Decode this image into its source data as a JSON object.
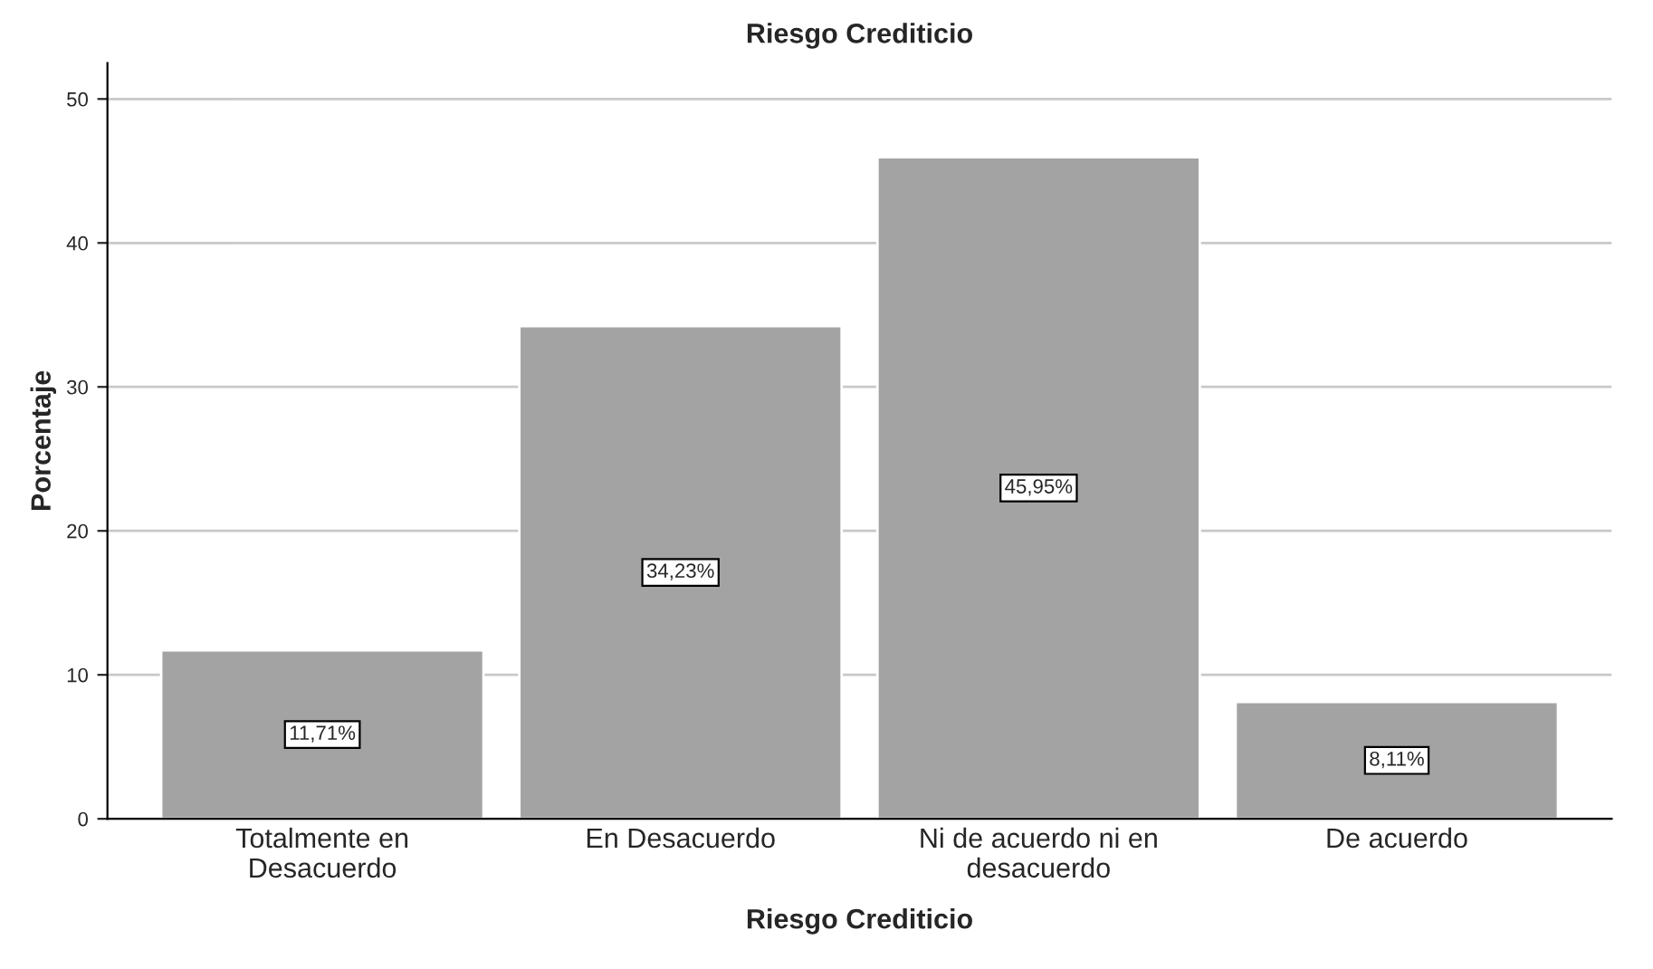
{
  "chart_data": {
    "type": "bar",
    "title": "Riesgo Crediticio",
    "xlabel": "Riesgo Crediticio",
    "ylabel": "Porcentaje",
    "categories": [
      "Totalmente en\nDesacuerdo",
      "En Desacuerdo",
      "Ni de acuerdo ni en\ndesacuerdo",
      "De acuerdo"
    ],
    "values": [
      11.71,
      34.23,
      45.95,
      8.11
    ],
    "value_labels": [
      "11,71%",
      "34,23%",
      "45,95%",
      "8,11%"
    ],
    "color": "#a3a3a3",
    "ylim": [
      0,
      52.5
    ],
    "yticks": [
      0,
      10,
      20,
      30,
      40,
      50
    ],
    "grid": "y"
  }
}
